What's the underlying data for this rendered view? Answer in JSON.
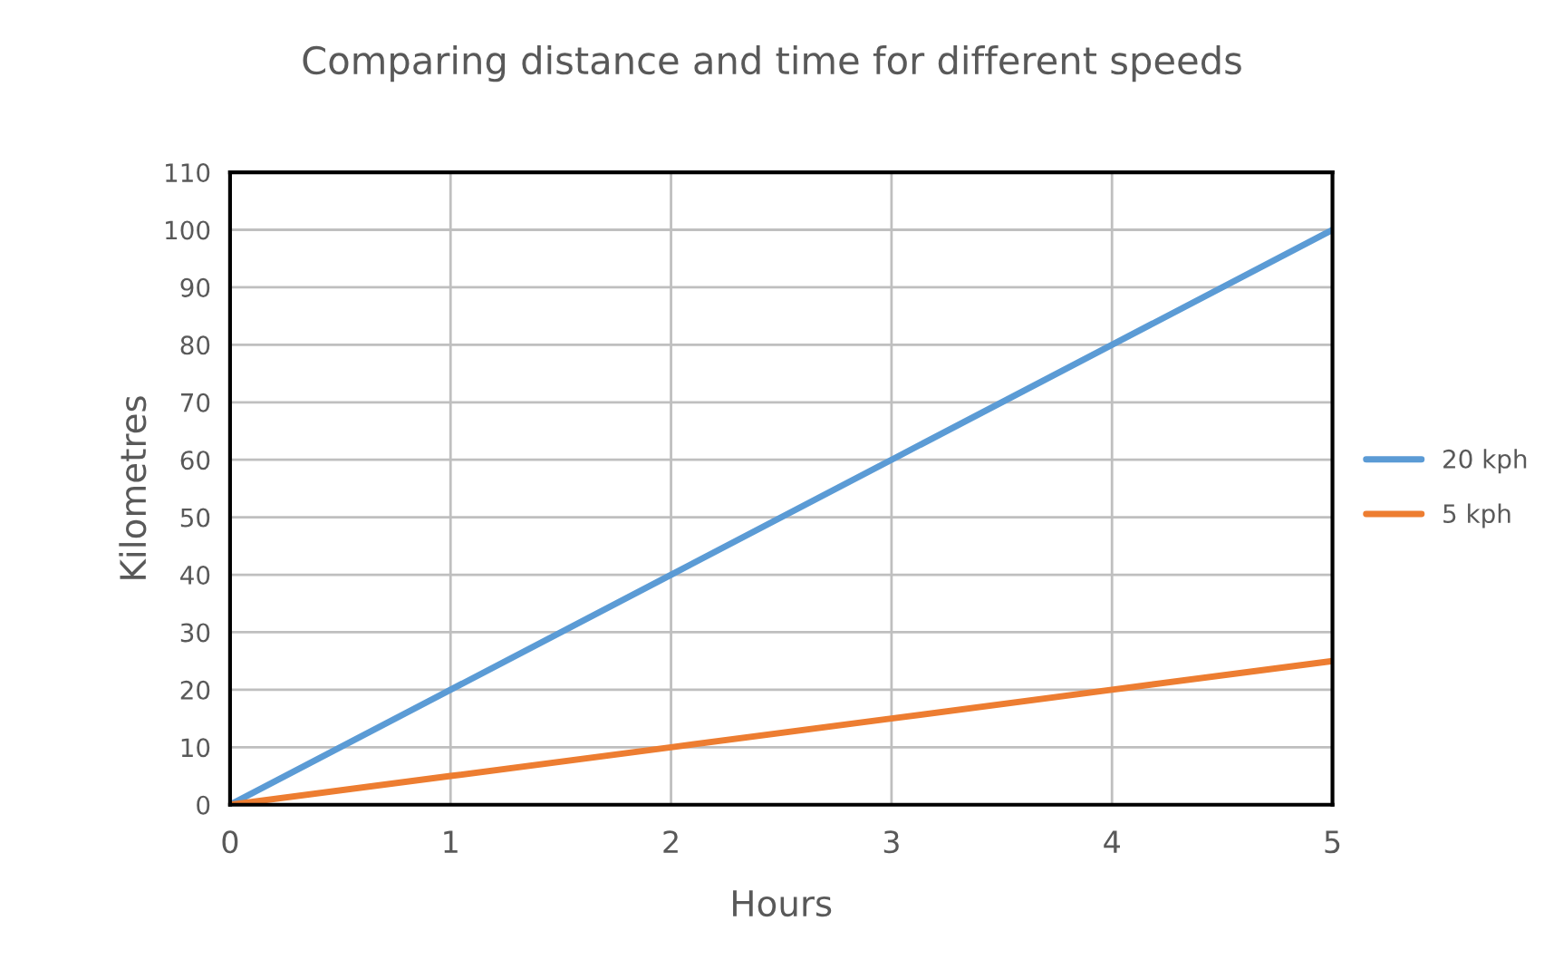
{
  "chart_data": {
    "type": "line",
    "title": "Comparing distance and time for different speeds",
    "xlabel": "Hours",
    "ylabel": "Kilometres",
    "x": [
      0,
      1,
      2,
      3,
      4,
      5
    ],
    "series": [
      {
        "name": "20 kph",
        "color": "#5b9bd5",
        "values": [
          0,
          20,
          40,
          60,
          80,
          100
        ]
      },
      {
        "name": "5 kph",
        "color": "#ed7d31",
        "values": [
          0,
          5,
          10,
          15,
          20,
          25
        ]
      }
    ],
    "xlim": [
      0,
      5
    ],
    "xticks": [
      0,
      1,
      2,
      3,
      4,
      5
    ],
    "ylim": [
      0,
      110
    ],
    "yticks": [
      0,
      10,
      20,
      30,
      40,
      50,
      60,
      70,
      80,
      90,
      100,
      110
    ],
    "grid": true,
    "legend": "right",
    "marker": "none",
    "line_style": "solid"
  }
}
